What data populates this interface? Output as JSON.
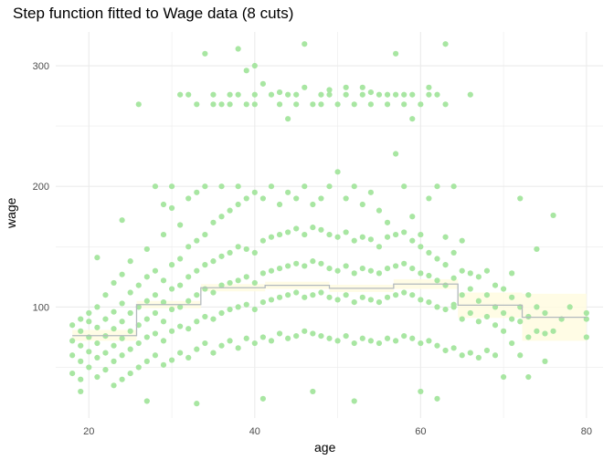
{
  "chart_data": {
    "type": "scatter",
    "title": "Step function fitted to Wage data (8 cuts)",
    "xlabel": "age",
    "ylabel": "wage",
    "xlim": [
      16,
      82
    ],
    "ylim": [
      8,
      328
    ],
    "x_ticks": [
      20,
      40,
      60,
      80
    ],
    "y_ticks": [
      100,
      200,
      300
    ],
    "grid": true,
    "colors": {
      "points": "#a8e6a2",
      "fit_line": "#b3b9be",
      "confidence_band": "#fffbe0",
      "grid": "#ebebeb",
      "tick_text": "#4d4d4d"
    },
    "step_fit": {
      "name": "",
      "segments": [
        {
          "x_start": 18,
          "x_end": 25.75,
          "y": 76.3
        },
        {
          "x_start": 25.75,
          "x_end": 33.5,
          "y": 102.0
        },
        {
          "x_start": 33.5,
          "x_end": 41.25,
          "y": 116.0
        },
        {
          "x_start": 41.25,
          "x_end": 49.0,
          "y": 118.0
        },
        {
          "x_start": 49.0,
          "x_end": 56.75,
          "y": 115.5
        },
        {
          "x_start": 56.75,
          "x_end": 64.5,
          "y": 119.0
        },
        {
          "x_start": 64.5,
          "x_end": 72.25,
          "y": 101.5
        },
        {
          "x_start": 72.25,
          "x_end": 80,
          "y": 91.5
        }
      ],
      "band": [
        {
          "x_start": 18,
          "x_end": 25.75,
          "lo": 72,
          "hi": 81
        },
        {
          "x_start": 25.75,
          "x_end": 33.5,
          "lo": 99,
          "hi": 105
        },
        {
          "x_start": 33.5,
          "x_end": 41.25,
          "lo": 113,
          "hi": 119
        },
        {
          "x_start": 41.25,
          "x_end": 49.0,
          "lo": 115,
          "hi": 121
        },
        {
          "x_start": 49.0,
          "x_end": 56.75,
          "lo": 112.5,
          "hi": 118.5
        },
        {
          "x_start": 56.75,
          "x_end": 64.5,
          "lo": 115,
          "hi": 123
        },
        {
          "x_start": 64.5,
          "x_end": 72.25,
          "lo": 91,
          "hi": 112
        },
        {
          "x_start": 72.25,
          "x_end": 80,
          "lo": 72,
          "hi": 111
        }
      ]
    },
    "scatter_points": [
      [
        18,
        45
      ],
      [
        18,
        60
      ],
      [
        18,
        72
      ],
      [
        18,
        85
      ],
      [
        19,
        40
      ],
      [
        19,
        55
      ],
      [
        19,
        68
      ],
      [
        19,
        80
      ],
      [
        19,
        90
      ],
      [
        19,
        30
      ],
      [
        20,
        50
      ],
      [
        20,
        63
      ],
      [
        20,
        75
      ],
      [
        20,
        88
      ],
      [
        20,
        95
      ],
      [
        21,
        42
      ],
      [
        21,
        58
      ],
      [
        21,
        70
      ],
      [
        21,
        83
      ],
      [
        21,
        100
      ],
      [
        21,
        141
      ],
      [
        22,
        48
      ],
      [
        22,
        62
      ],
      [
        22,
        76
      ],
      [
        22,
        90
      ],
      [
        22,
        110
      ],
      [
        23,
        35
      ],
      [
        23,
        55
      ],
      [
        23,
        68
      ],
      [
        23,
        82
      ],
      [
        23,
        96
      ],
      [
        23,
        120
      ],
      [
        24,
        40
      ],
      [
        24,
        60
      ],
      [
        24,
        74
      ],
      [
        24,
        88
      ],
      [
        24,
        103
      ],
      [
        24,
        127
      ],
      [
        24,
        172
      ],
      [
        25,
        45
      ],
      [
        25,
        65
      ],
      [
        25,
        80
      ],
      [
        25,
        95
      ],
      [
        25,
        112
      ],
      [
        25,
        138
      ],
      [
        26,
        50
      ],
      [
        26,
        70
      ],
      [
        26,
        85
      ],
      [
        26,
        100
      ],
      [
        26,
        118
      ],
      [
        26,
        268
      ],
      [
        27,
        55
      ],
      [
        27,
        75
      ],
      [
        27,
        90
      ],
      [
        27,
        105
      ],
      [
        27,
        125
      ],
      [
        27,
        148
      ],
      [
        27,
        22
      ],
      [
        28,
        60
      ],
      [
        28,
        78
      ],
      [
        28,
        95
      ],
      [
        28,
        110
      ],
      [
        28,
        130
      ],
      [
        28,
        200
      ],
      [
        29,
        52
      ],
      [
        29,
        72
      ],
      [
        29,
        88
      ],
      [
        29,
        104
      ],
      [
        29,
        122
      ],
      [
        29,
        160
      ],
      [
        29,
        185
      ],
      [
        30,
        56
      ],
      [
        30,
        80
      ],
      [
        30,
        98
      ],
      [
        30,
        115
      ],
      [
        30,
        135
      ],
      [
        30,
        182
      ],
      [
        30,
        200
      ],
      [
        31,
        62
      ],
      [
        31,
        84
      ],
      [
        31,
        100
      ],
      [
        31,
        118
      ],
      [
        31,
        140
      ],
      [
        31,
        168
      ],
      [
        31,
        276
      ],
      [
        32,
        58
      ],
      [
        32,
        82
      ],
      [
        32,
        105
      ],
      [
        32,
        125
      ],
      [
        32,
        150
      ],
      [
        32,
        190
      ],
      [
        32,
        276
      ],
      [
        33,
        65
      ],
      [
        33,
        88
      ],
      [
        33,
        110
      ],
      [
        33,
        130
      ],
      [
        33,
        155
      ],
      [
        33,
        195
      ],
      [
        33,
        268
      ],
      [
        33,
        20
      ],
      [
        34,
        70
      ],
      [
        34,
        92
      ],
      [
        34,
        115
      ],
      [
        34,
        135
      ],
      [
        34,
        160
      ],
      [
        34,
        200
      ],
      [
        34,
        310
      ],
      [
        35,
        62
      ],
      [
        35,
        90
      ],
      [
        35,
        112
      ],
      [
        35,
        138
      ],
      [
        35,
        170
      ],
      [
        35,
        268
      ],
      [
        35,
        276
      ],
      [
        36,
        68
      ],
      [
        36,
        95
      ],
      [
        36,
        118
      ],
      [
        36,
        142
      ],
      [
        36,
        175
      ],
      [
        36,
        200
      ],
      [
        36,
        268
      ],
      [
        37,
        72
      ],
      [
        37,
        98
      ],
      [
        37,
        120
      ],
      [
        37,
        145
      ],
      [
        37,
        180
      ],
      [
        37,
        276
      ],
      [
        37,
        268
      ],
      [
        38,
        66
      ],
      [
        38,
        100
      ],
      [
        38,
        122
      ],
      [
        38,
        150
      ],
      [
        38,
        185
      ],
      [
        38,
        200
      ],
      [
        38,
        314
      ],
      [
        38,
        276
      ],
      [
        39,
        74
      ],
      [
        39,
        102
      ],
      [
        39,
        125
      ],
      [
        39,
        148
      ],
      [
        39,
        190
      ],
      [
        39,
        268
      ],
      [
        39,
        296
      ],
      [
        40,
        70
      ],
      [
        40,
        98
      ],
      [
        40,
        120
      ],
      [
        40,
        145
      ],
      [
        40,
        195
      ],
      [
        40,
        300
      ],
      [
        40,
        268
      ],
      [
        40,
        276
      ],
      [
        41,
        75
      ],
      [
        41,
        104
      ],
      [
        41,
        128
      ],
      [
        41,
        155
      ],
      [
        41,
        190
      ],
      [
        41,
        285
      ],
      [
        41,
        24
      ],
      [
        42,
        72
      ],
      [
        42,
        106
      ],
      [
        42,
        130
      ],
      [
        42,
        158
      ],
      [
        42,
        200
      ],
      [
        42,
        276
      ],
      [
        43,
        78
      ],
      [
        43,
        108
      ],
      [
        43,
        132
      ],
      [
        43,
        160
      ],
      [
        43,
        185
      ],
      [
        43,
        268
      ],
      [
        43,
        278
      ],
      [
        44,
        74
      ],
      [
        44,
        110
      ],
      [
        44,
        134
      ],
      [
        44,
        162
      ],
      [
        44,
        195
      ],
      [
        44,
        256
      ],
      [
        44,
        276
      ],
      [
        45,
        76
      ],
      [
        45,
        112
      ],
      [
        45,
        136
      ],
      [
        45,
        165
      ],
      [
        45,
        190
      ],
      [
        45,
        268
      ],
      [
        45,
        276
      ],
      [
        46,
        80
      ],
      [
        46,
        108
      ],
      [
        46,
        134
      ],
      [
        46,
        160
      ],
      [
        46,
        200
      ],
      [
        46,
        318
      ],
      [
        46,
        282
      ],
      [
        47,
        78
      ],
      [
        47,
        110
      ],
      [
        47,
        138
      ],
      [
        47,
        166
      ],
      [
        47,
        185
      ],
      [
        47,
        268
      ],
      [
        47,
        30
      ],
      [
        48,
        76
      ],
      [
        48,
        112
      ],
      [
        48,
        136
      ],
      [
        48,
        164
      ],
      [
        48,
        190
      ],
      [
        48,
        276
      ],
      [
        48,
        268
      ],
      [
        49,
        74
      ],
      [
        49,
        108
      ],
      [
        49,
        132
      ],
      [
        49,
        160
      ],
      [
        49,
        200
      ],
      [
        49,
        280
      ],
      [
        49,
        276
      ],
      [
        50,
        72
      ],
      [
        50,
        106
      ],
      [
        50,
        130
      ],
      [
        50,
        158
      ],
      [
        50,
        212
      ],
      [
        50,
        268
      ],
      [
        51,
        76
      ],
      [
        51,
        110
      ],
      [
        51,
        134
      ],
      [
        51,
        162
      ],
      [
        51,
        190
      ],
      [
        51,
        282
      ],
      [
        51,
        276
      ],
      [
        52,
        70
      ],
      [
        52,
        104
      ],
      [
        52,
        128
      ],
      [
        52,
        155
      ],
      [
        52,
        200
      ],
      [
        52,
        268
      ],
      [
        52,
        22
      ],
      [
        53,
        74
      ],
      [
        53,
        108
      ],
      [
        53,
        132
      ],
      [
        53,
        158
      ],
      [
        53,
        185
      ],
      [
        53,
        276
      ],
      [
        53,
        282
      ],
      [
        54,
        72
      ],
      [
        54,
        106
      ],
      [
        54,
        130
      ],
      [
        54,
        156
      ],
      [
        54,
        195
      ],
      [
        54,
        278
      ],
      [
        54,
        268
      ],
      [
        55,
        70
      ],
      [
        55,
        104
      ],
      [
        55,
        128
      ],
      [
        55,
        150
      ],
      [
        55,
        180
      ],
      [
        55,
        276
      ],
      [
        56,
        74
      ],
      [
        56,
        108
      ],
      [
        56,
        132
      ],
      [
        56,
        158
      ],
      [
        56,
        170
      ],
      [
        56,
        268
      ],
      [
        56,
        276
      ],
      [
        57,
        72
      ],
      [
        57,
        110
      ],
      [
        57,
        134
      ],
      [
        57,
        160
      ],
      [
        57,
        227
      ],
      [
        57,
        310
      ],
      [
        57,
        276
      ],
      [
        58,
        76
      ],
      [
        58,
        112
      ],
      [
        58,
        136
      ],
      [
        58,
        162
      ],
      [
        58,
        200
      ],
      [
        58,
        268
      ],
      [
        58,
        276
      ],
      [
        59,
        74
      ],
      [
        59,
        110
      ],
      [
        59,
        132
      ],
      [
        59,
        155
      ],
      [
        59,
        175
      ],
      [
        59,
        256
      ],
      [
        59,
        276
      ],
      [
        60,
        70
      ],
      [
        60,
        106
      ],
      [
        60,
        128
      ],
      [
        60,
        150
      ],
      [
        60,
        160
      ],
      [
        60,
        268
      ],
      [
        60,
        30
      ],
      [
        61,
        72
      ],
      [
        61,
        104
      ],
      [
        61,
        126
      ],
      [
        61,
        145
      ],
      [
        61,
        190
      ],
      [
        61,
        282
      ],
      [
        61,
        276
      ],
      [
        62,
        68
      ],
      [
        62,
        100
      ],
      [
        62,
        122
      ],
      [
        62,
        140
      ],
      [
        62,
        200
      ],
      [
        62,
        276
      ],
      [
        62,
        24
      ],
      [
        63,
        64
      ],
      [
        63,
        98
      ],
      [
        63,
        118
      ],
      [
        63,
        135
      ],
      [
        63,
        158
      ],
      [
        63,
        318
      ],
      [
        63,
        268
      ],
      [
        64,
        66
      ],
      [
        64,
        102
      ],
      [
        64,
        124
      ],
      [
        64,
        145
      ],
      [
        64,
        200
      ],
      [
        64,
        100
      ],
      [
        65,
        60
      ],
      [
        65,
        90
      ],
      [
        65,
        110
      ],
      [
        65,
        130
      ],
      [
        65,
        155
      ],
      [
        66,
        62
      ],
      [
        66,
        95
      ],
      [
        66,
        115
      ],
      [
        66,
        128
      ],
      [
        66,
        276
      ],
      [
        67,
        58
      ],
      [
        67,
        88
      ],
      [
        67,
        105
      ],
      [
        67,
        125
      ],
      [
        68,
        64
      ],
      [
        68,
        92
      ],
      [
        68,
        110
      ],
      [
        68,
        130
      ],
      [
        69,
        60
      ],
      [
        69,
        85
      ],
      [
        69,
        100
      ],
      [
        69,
        118
      ],
      [
        70,
        42
      ],
      [
        70,
        80
      ],
      [
        70,
        95
      ],
      [
        70,
        115
      ],
      [
        71,
        70
      ],
      [
        71,
        90
      ],
      [
        71,
        108
      ],
      [
        71,
        128
      ],
      [
        72,
        60
      ],
      [
        72,
        88
      ],
      [
        72,
        100
      ],
      [
        72,
        190
      ],
      [
        73,
        42
      ],
      [
        73,
        75
      ],
      [
        73,
        92
      ],
      [
        73,
        110
      ],
      [
        74,
        80
      ],
      [
        74,
        100
      ],
      [
        74,
        148
      ],
      [
        75,
        55
      ],
      [
        75,
        78
      ],
      [
        75,
        95
      ],
      [
        76,
        176
      ],
      [
        76,
        80
      ],
      [
        77,
        90
      ],
      [
        78,
        100
      ],
      [
        80,
        75
      ],
      [
        80,
        90
      ],
      [
        80,
        95
      ]
    ]
  }
}
